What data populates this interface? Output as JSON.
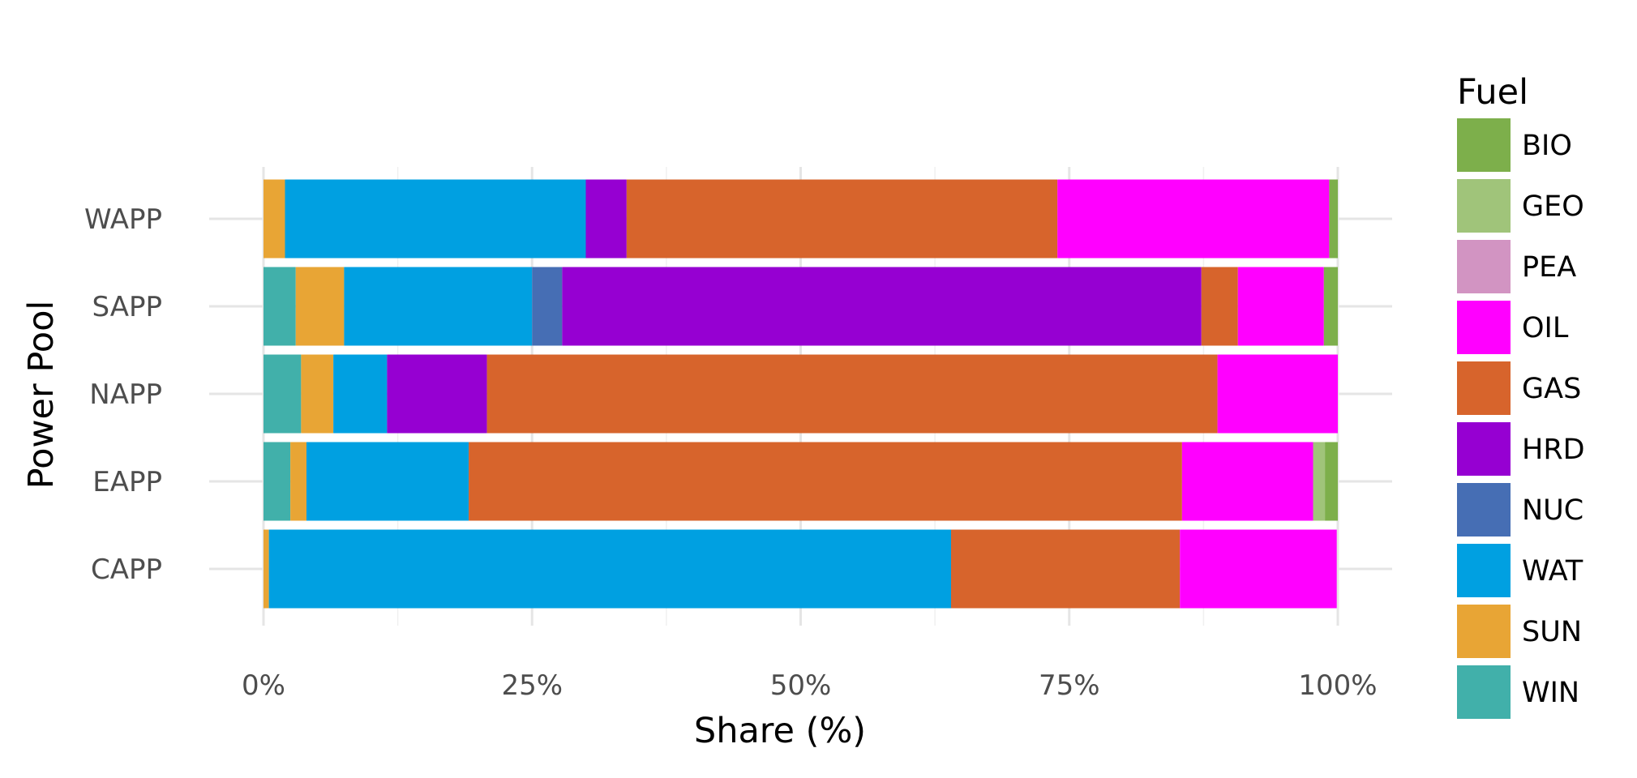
{
  "chart_data": {
    "type": "bar",
    "orientation": "horizontal",
    "stacked": true,
    "xlabel": "Share (%)",
    "ylabel": "Power Pool",
    "xlim": [
      0,
      100
    ],
    "xticks": [
      0,
      25,
      50,
      75,
      100
    ],
    "xtick_labels": [
      "0%",
      "25%",
      "50%",
      "75%",
      "100%"
    ],
    "grid": true,
    "legend": {
      "title": "Fuel",
      "position": "right"
    },
    "categories": [
      "CAPP",
      "EAPP",
      "NAPP",
      "SAPP",
      "WAPP"
    ],
    "series": [
      {
        "name": "WIN",
        "color": "#41b0aa",
        "values": [
          0.0,
          2.5,
          3.5,
          3.0,
          0.0
        ]
      },
      {
        "name": "SUN",
        "color": "#e8a535",
        "values": [
          0.5,
          1.5,
          3.0,
          4.5,
          2.0
        ]
      },
      {
        "name": "WAT",
        "color": "#00a0e1",
        "values": [
          63.5,
          15.1,
          5.0,
          17.5,
          28.0
        ]
      },
      {
        "name": "NUC",
        "color": "#466eb4",
        "values": [
          0.0,
          0.0,
          0.0,
          2.8,
          0.0
        ]
      },
      {
        "name": "HRD",
        "color": "#9600d2",
        "values": [
          0.0,
          0.0,
          9.3,
          59.5,
          3.8
        ]
      },
      {
        "name": "GAS",
        "color": "#d7642c",
        "values": [
          21.3,
          66.4,
          68.0,
          3.4,
          40.1
        ]
      },
      {
        "name": "OIL",
        "color": "#ff00ff",
        "values": [
          14.6,
          12.2,
          11.2,
          8.0,
          25.3
        ]
      },
      {
        "name": "PEA",
        "color": "#d294c2",
        "values": [
          0.0,
          0.0,
          0.0,
          0.0,
          0.0
        ]
      },
      {
        "name": "GEO",
        "color": "#a0c47a",
        "values": [
          0.0,
          1.1,
          0.0,
          0.0,
          0.0
        ]
      },
      {
        "name": "BIO",
        "color": "#7daf4b",
        "values": [
          0.0,
          1.2,
          0.0,
          1.3,
          0.8
        ]
      }
    ]
  }
}
